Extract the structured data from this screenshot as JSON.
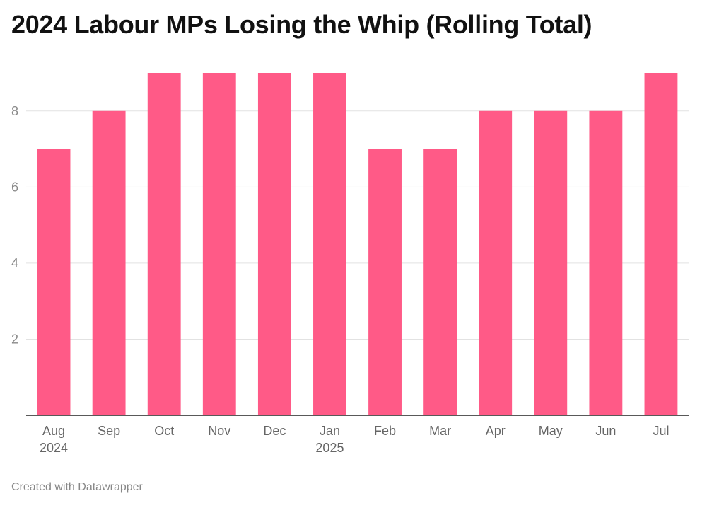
{
  "chart_data": {
    "type": "bar",
    "title": "2024 Labour MPs Losing the Whip (Rolling Total)",
    "categories": [
      "Aug",
      "Sep",
      "Oct",
      "Nov",
      "Dec",
      "Jan",
      "Feb",
      "Mar",
      "Apr",
      "May",
      "Jun",
      "Jul"
    ],
    "year_labels": [
      "2024",
      "",
      "",
      "",
      "",
      "2025",
      "",
      "",
      "",
      "",
      "",
      ""
    ],
    "values": [
      7,
      8,
      9,
      9,
      9,
      9,
      7,
      7,
      8,
      8,
      8,
      9
    ],
    "y_ticks": [
      2,
      4,
      6,
      8
    ],
    "ylim": [
      0,
      9
    ],
    "xlabel": "",
    "ylabel": "",
    "grid": true,
    "bar_color": "#ff5a87"
  },
  "footer": {
    "credit": "Created with Datawrapper"
  }
}
